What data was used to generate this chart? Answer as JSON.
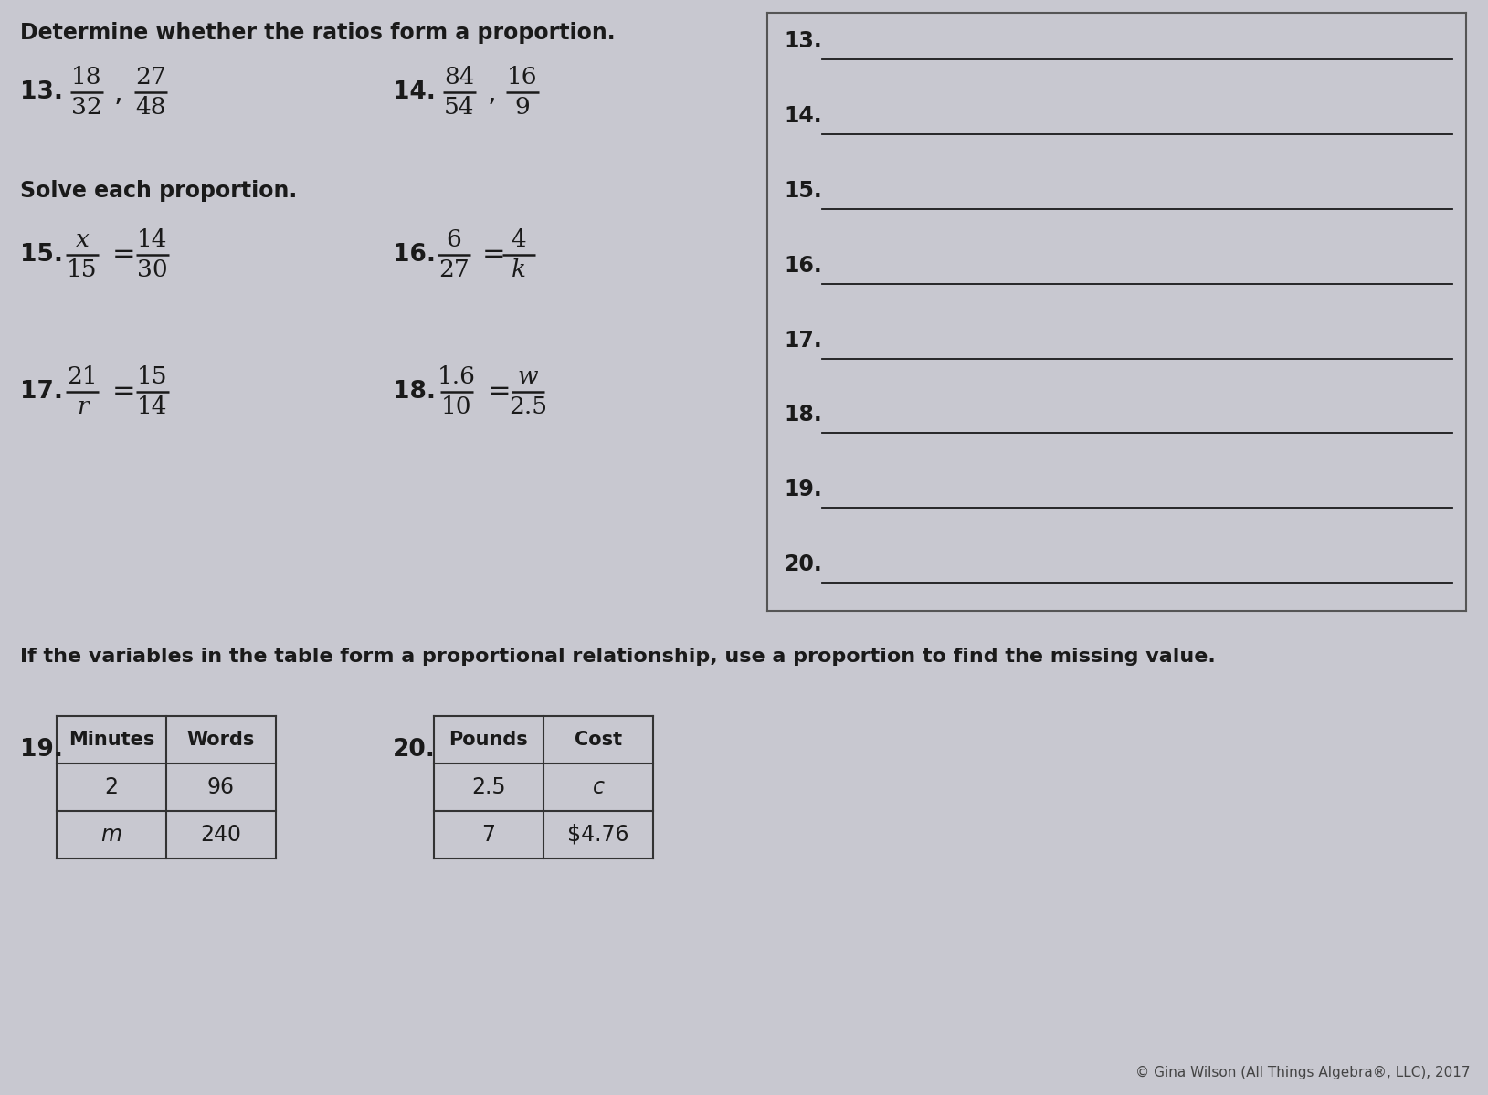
{
  "bg_color": "#c8c8d0",
  "title_section1": "Determine whether the ratios form a proportion.",
  "title_section2": "Solve each proportion.",
  "title_section3": "If the variables in the table form a proportional relationship, use a proportion to find the missing value.",
  "copyright": "© Gina Wilson (All Things Algebra®, LLC), 2017",
  "answer_labels": [
    "13.",
    "14.",
    "15.",
    "16.",
    "17.",
    "18.",
    "19.",
    "20."
  ],
  "table19": {
    "headers": [
      "Minutes",
      "Words"
    ],
    "rows": [
      [
        "2",
        "96"
      ],
      [
        "m",
        "240"
      ]
    ]
  },
  "table20": {
    "headers": [
      "Pounds",
      "Cost"
    ],
    "rows": [
      [
        "2.5",
        "c"
      ],
      [
        "7",
        "$4.76"
      ]
    ]
  }
}
